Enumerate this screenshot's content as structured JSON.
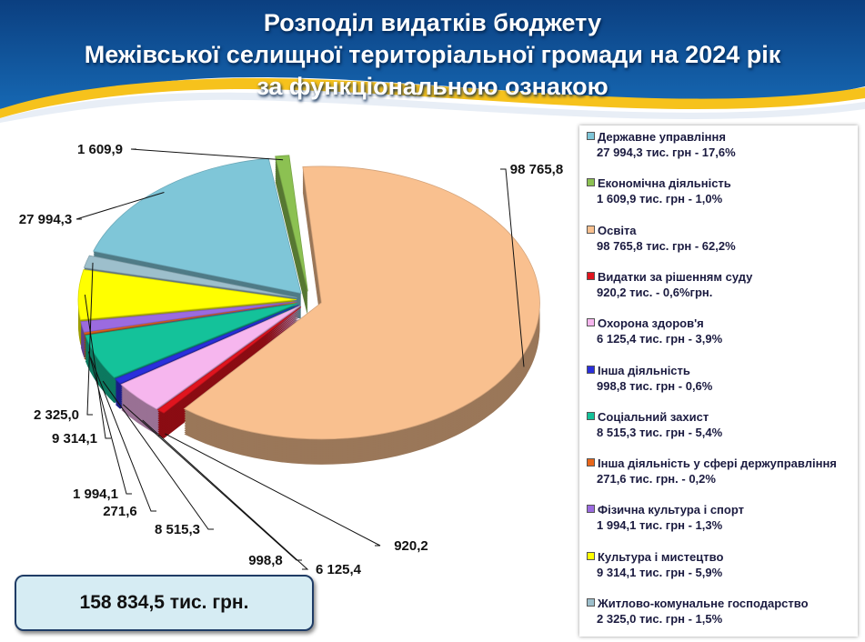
{
  "chart_data": {
    "type": "pie",
    "title": [
      "Розподіл видатків бюджету",
      "Межівської селищної територіальної громади на 2024 рік",
      "за функціональною ознакою"
    ],
    "categories": [
      "Державне управління",
      "Економічна діяльність",
      "Освіта",
      "Видатки за рішенням суду",
      "Охорона здоров'я",
      "Інша діяльність",
      "Соціальний захист",
      "Інша діяльність у сфері держуправління",
      "Фізична культура і спорт",
      "Культура і мистецтво",
      "Житлово-комунальне господарство"
    ],
    "legend_details": [
      "27 994,3 тис. грн - 17,6%",
      "1 609,9 тис. грн - 1,0%",
      "98 765,8 тис. грн - 62,2%",
      "920,2 тис.  - 0,6%грн.",
      "6 125,4 тис. грн - 3,9%",
      "998,8 тис. грн - 0,6%",
      "8 515,3 тис. грн - 5,4%",
      "271,6 тис. грн. - 0,2%",
      "1 994,1 тис. грн - 1,3%",
      "9 314,1 тис. грн - 5,9%",
      "2 325,0 тис. грн - 1,5%"
    ],
    "values": [
      27994.3,
      1609.9,
      98765.8,
      920.2,
      6125.4,
      998.8,
      8515.3,
      271.6,
      1994.1,
      9314.1,
      2325.0
    ],
    "value_labels": [
      "27 994,3",
      "1 609,9",
      "98 765,8",
      "920,2",
      "6 125,4",
      "998,8",
      "8 515,3",
      "271,6",
      "1 994,1",
      "9 314,1",
      "2 325,0"
    ],
    "colors": [
      "#7fc6d8",
      "#8cc152",
      "#f9c08f",
      "#e0141e",
      "#f6b6ee",
      "#2a2fdc",
      "#14c29a",
      "#e8661a",
      "#9b6be0",
      "#ffff00",
      "#9dbfcc"
    ],
    "total_label": "158 834,5 тис. грн."
  }
}
